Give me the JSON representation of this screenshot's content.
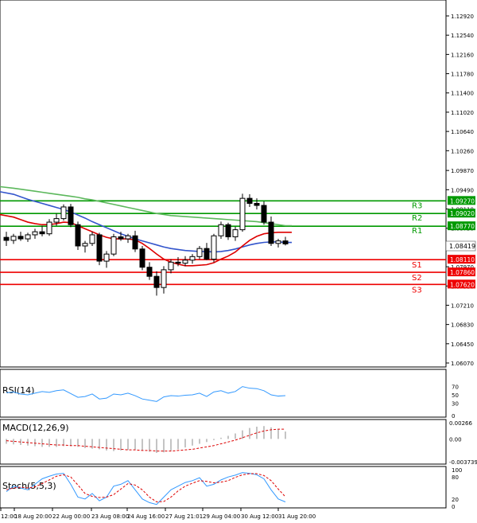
{
  "chart_data": {
    "type": "candlestick",
    "timeframe_labels": [
      "12:00",
      "18 Aug 20:00",
      "22 Aug 00:00",
      "23 Aug 08:00",
      "24 Aug 16:00",
      "27 Aug 21:01",
      "29 Aug 04:00",
      "30 Aug 12:00",
      "31 Aug 20:00"
    ],
    "price_axis": {
      "ticks": [
        "1.12920",
        "1.12540",
        "1.12160",
        "1.11780",
        "1.11400",
        "1.11020",
        "1.10640",
        "1.10260",
        "1.09870",
        "1.09490",
        "1.09110",
        "1.08730",
        "1.08350",
        "1.07970",
        "1.07590",
        "1.07210",
        "1.06830",
        "1.06450",
        "1.06070"
      ],
      "current_price": "1.08419"
    },
    "levels": [
      {
        "name": "R3",
        "value": "1.09270",
        "color": "#009900"
      },
      {
        "name": "R2",
        "value": "1.09020",
        "color": "#009900"
      },
      {
        "name": "R1",
        "value": "1.08770",
        "color": "#009900"
      },
      {
        "name": "S1",
        "value": "1.08110",
        "color": "#ee0000"
      },
      {
        "name": "S2",
        "value": "1.07860",
        "color": "#ee0000"
      },
      {
        "name": "S3",
        "value": "1.07620",
        "color": "#ee0000"
      }
    ],
    "candles": [
      [
        1.0855,
        1.0866,
        1.0838,
        1.0849
      ],
      [
        1.0849,
        1.0862,
        1.0842,
        1.0857
      ],
      [
        1.0857,
        1.0866,
        1.0848,
        1.0852
      ],
      [
        1.0852,
        1.0864,
        1.0846,
        1.086
      ],
      [
        1.086,
        1.0872,
        1.0852,
        1.0866
      ],
      [
        1.0866,
        1.0878,
        1.0857,
        1.0862
      ],
      [
        1.0862,
        1.0891,
        1.0858,
        1.0885
      ],
      [
        1.0885,
        1.0902,
        1.0878,
        1.0892
      ],
      [
        1.0892,
        1.092,
        1.0888,
        1.0915
      ],
      [
        1.0915,
        1.0921,
        1.0875,
        1.088
      ],
      [
        1.088,
        1.0886,
        1.083,
        1.0838
      ],
      [
        1.0838,
        1.0848,
        1.0825,
        1.0843
      ],
      [
        1.0843,
        1.0866,
        1.0838,
        1.086
      ],
      [
        1.086,
        1.0864,
        1.08,
        1.0808
      ],
      [
        1.0808,
        1.0828,
        1.0795,
        1.0822
      ],
      [
        1.0822,
        1.0862,
        1.0818,
        1.0856
      ],
      [
        1.0856,
        1.0866,
        1.0848,
        1.0852
      ],
      [
        1.0852,
        1.0862,
        1.0844,
        1.0858
      ],
      [
        1.0858,
        1.0868,
        1.0826,
        1.0832
      ],
      [
        1.0832,
        1.0838,
        1.079,
        1.0796
      ],
      [
        1.0796,
        1.0806,
        1.0771,
        1.0778
      ],
      [
        1.0778,
        1.0788,
        1.074,
        1.0756
      ],
      [
        1.0756,
        1.0798,
        1.0744,
        1.0791
      ],
      [
        1.0791,
        1.0812,
        1.0784,
        1.0806
      ],
      [
        1.0806,
        1.0816,
        1.0798,
        1.0804
      ],
      [
        1.0804,
        1.0818,
        1.0798,
        1.081
      ],
      [
        1.081,
        1.0822,
        1.0803,
        1.0817
      ],
      [
        1.0817,
        1.0838,
        1.0812,
        1.0833
      ],
      [
        1.0833,
        1.0844,
        1.081,
        1.0812
      ],
      [
        1.0812,
        1.0862,
        1.0806,
        1.0858
      ],
      [
        1.0858,
        1.0886,
        1.0852,
        1.088
      ],
      [
        1.088,
        1.0884,
        1.085,
        1.0856
      ],
      [
        1.0856,
        1.0876,
        1.0848,
        1.087
      ],
      [
        1.087,
        1.0941,
        1.0866,
        1.0932
      ],
      [
        1.0932,
        1.094,
        1.0915,
        1.0922
      ],
      [
        1.0922,
        1.0932,
        1.091,
        1.0918
      ],
      [
        1.0918,
        1.0926,
        1.088,
        1.0885
      ],
      [
        1.0885,
        1.0896,
        1.0838,
        1.0843
      ],
      [
        1.0843,
        1.0852,
        1.0835,
        1.0848
      ],
      [
        1.0848,
        1.0856,
        1.0839,
        1.0842
      ]
    ],
    "ma_series": [
      {
        "name": "MA slow",
        "color": "#5cb85c",
        "values": [
          1.0955,
          1.0952,
          1.095,
          1.0948,
          1.0946,
          1.0944,
          1.0942,
          1.094,
          1.0938,
          1.0936,
          1.0934,
          1.0931,
          1.0929,
          1.0926,
          1.0923,
          1.092,
          1.0917,
          1.0914,
          1.0911,
          1.0908,
          1.0905,
          1.0902,
          1.09,
          1.0898,
          1.0897,
          1.0896,
          1.0895,
          1.0894,
          1.0893,
          1.0892,
          1.0891,
          1.089,
          1.0889,
          1.0888,
          1.0887,
          1.0886,
          1.0884,
          1.0882,
          1.088,
          1.0878
        ]
      },
      {
        "name": "MA mid",
        "color": "#3355cc",
        "values": [
          1.0945,
          1.094,
          1.0935,
          1.093,
          1.0926,
          1.0922,
          1.0918,
          1.0914,
          1.091,
          1.0905,
          1.0899,
          1.0893,
          1.0886,
          1.088,
          1.0874,
          1.0868,
          1.0862,
          1.0857,
          1.0852,
          1.0848,
          1.0844,
          1.084,
          1.0836,
          1.0833,
          1.0831,
          1.0829,
          1.0828,
          1.0827,
          1.0827,
          1.0826,
          1.0827,
          1.0829,
          1.0832,
          1.0836,
          1.084,
          1.0843,
          1.0845,
          1.0846,
          1.0846,
          1.0845
        ]
      },
      {
        "name": "MA fast",
        "color": "#dd0000",
        "values": [
          1.09,
          1.0895,
          1.089,
          1.0885,
          1.0882,
          1.088,
          1.088,
          1.0882,
          1.0885,
          1.0884,
          1.0878,
          1.0872,
          1.0866,
          1.086,
          1.0855,
          1.0852,
          1.0852,
          1.0852,
          1.085,
          1.0843,
          1.0833,
          1.0822,
          1.0812,
          1.0806,
          1.0802,
          1.0799,
          1.0799,
          1.08,
          1.0801,
          1.0805,
          1.0812,
          1.0818,
          1.0826,
          1.0838,
          1.0849,
          1.0857,
          1.0862,
          1.0864,
          1.0865,
          1.0865
        ]
      }
    ],
    "rsi": {
      "label": "RSI(14)",
      "ticks": [
        "70",
        "50",
        "30",
        "0"
      ],
      "values": [
        55,
        57,
        52,
        50,
        54,
        58,
        56,
        60,
        62,
        53,
        44,
        46,
        52,
        40,
        42,
        52,
        50,
        54,
        48,
        40,
        37,
        34,
        45,
        48,
        47,
        49,
        50,
        54,
        46,
        57,
        60,
        54,
        58,
        70,
        66,
        65,
        60,
        50,
        47,
        48
      ]
    },
    "macd": {
      "label": "MACD(12,26,9)",
      "ticks": [
        "0.00266",
        "0.00",
        "-0.003739"
      ],
      "hist": [
        -0.0008,
        -0.0009,
        -0.001,
        -0.0011,
        -0.0012,
        -0.0013,
        -0.0013,
        -0.0013,
        -0.0012,
        -0.0012,
        -0.0013,
        -0.0015,
        -0.0016,
        -0.0017,
        -0.0019,
        -0.002,
        -0.0019,
        -0.0018,
        -0.0018,
        -0.0019,
        -0.0021,
        -0.0023,
        -0.0022,
        -0.002,
        -0.0017,
        -0.0014,
        -0.0011,
        -0.0008,
        -0.0005,
        -0.0002,
        0.0002,
        0.0005,
        0.0009,
        0.0014,
        0.0018,
        0.002,
        0.0021,
        0.0019,
        0.0016,
        0.0012
      ],
      "signal": [
        -0.0003,
        -0.0004,
        -0.0005,
        -0.0006,
        -0.0007,
        -0.0008,
        -0.0009,
        -0.001,
        -0.001,
        -0.0011,
        -0.0011,
        -0.0012,
        -0.0013,
        -0.0014,
        -0.0015,
        -0.0016,
        -0.0017,
        -0.0018,
        -0.0018,
        -0.0019,
        -0.0019,
        -0.002,
        -0.002,
        -0.002,
        -0.0019,
        -0.0018,
        -0.0017,
        -0.0015,
        -0.0013,
        -0.0011,
        -0.0008,
        -0.0005,
        -0.0002,
        0.0002,
        0.0006,
        0.001,
        0.0013,
        0.0015,
        0.0016,
        0.0016
      ]
    },
    "stoch": {
      "label": "Stoch(5,5,3)",
      "ticks": [
        "100",
        "80",
        "20",
        "0"
      ],
      "k": [
        40,
        55,
        50,
        45,
        60,
        75,
        82,
        88,
        90,
        60,
        25,
        20,
        35,
        15,
        25,
        55,
        60,
        70,
        45,
        20,
        10,
        5,
        25,
        45,
        55,
        65,
        70,
        78,
        55,
        60,
        72,
        80,
        85,
        92,
        90,
        86,
        75,
        45,
        20,
        12
      ],
      "d": [
        45,
        50,
        52,
        50,
        53,
        62,
        72,
        82,
        86,
        80,
        58,
        35,
        27,
        24,
        25,
        32,
        47,
        62,
        58,
        45,
        25,
        12,
        13,
        25,
        42,
        55,
        63,
        70,
        68,
        64,
        66,
        70,
        79,
        86,
        89,
        89,
        84,
        70,
        47,
        26
      ]
    }
  }
}
